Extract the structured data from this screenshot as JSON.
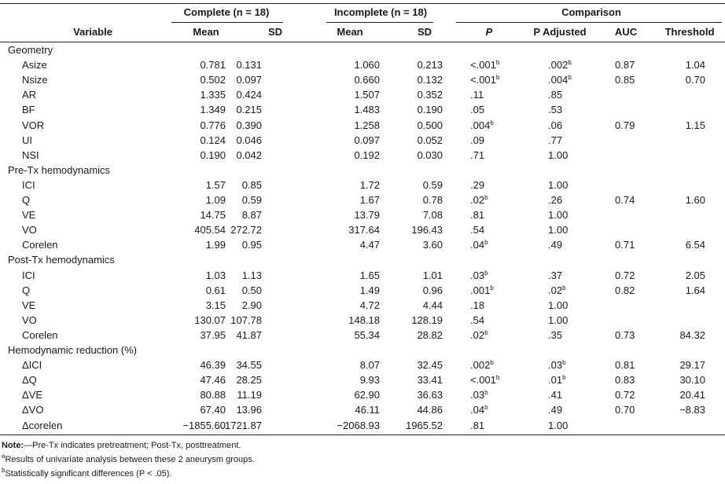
{
  "header": {
    "groups": [
      "Complete (n = 18)",
      "Incomplete (n = 18)",
      "Comparison"
    ],
    "columns": [
      "Variable",
      "Mean",
      "SD",
      "Mean",
      "SD",
      "P",
      "P Adjusted",
      "AUC",
      "Threshold"
    ]
  },
  "sections": [
    {
      "title": "Geometry",
      "rows": [
        {
          "label": "Asize",
          "cells": [
            "0.781",
            "0.131",
            "1.060",
            "0.213",
            {
              "text": "<.001",
              "sup": "b"
            },
            {
              "text": ".002",
              "sup": "b"
            },
            "0.87",
            "1.04"
          ]
        },
        {
          "label": "Nsize",
          "cells": [
            "0.502",
            "0.097",
            "0.660",
            "0.132",
            {
              "text": "<.001",
              "sup": "b"
            },
            {
              "text": ".004",
              "sup": "b"
            },
            "0.85",
            "0.70"
          ]
        },
        {
          "label": "AR",
          "cells": [
            "1.335",
            "0.424",
            "1.507",
            "0.352",
            ".11",
            ".85",
            null,
            null
          ]
        },
        {
          "label": "BF",
          "cells": [
            "1.349",
            "0.215",
            "1.483",
            "0.190",
            ".05",
            ".53",
            null,
            null
          ]
        },
        {
          "label": "VOR",
          "cells": [
            "0.776",
            "0.390",
            "1.258",
            "0.500",
            {
              "text": ".004",
              "sup": "b"
            },
            ".06",
            "0.79",
            "1.15"
          ]
        },
        {
          "label": "UI",
          "cells": [
            "0.124",
            "0.046",
            "0.097",
            "0.052",
            ".09",
            ".77",
            null,
            null
          ]
        },
        {
          "label": "NSI",
          "cells": [
            "0.190",
            "0.042",
            "0.192",
            "0.030",
            ".71",
            "1.00",
            null,
            null
          ]
        }
      ]
    },
    {
      "title": "Pre-Tx hemodynamics",
      "rows": [
        {
          "label": "ICI",
          "cells": [
            "1.57",
            "0.85",
            "1.72",
            "0.59",
            ".29",
            "1.00",
            null,
            null
          ]
        },
        {
          "label": "Q",
          "cells": [
            "1.09",
            "0.59",
            "1.67",
            "0.78",
            {
              "text": ".02",
              "sup": "b"
            },
            ".26",
            "0.74",
            "1.60"
          ]
        },
        {
          "label": "VE",
          "cells": [
            "14.75",
            "8.87",
            "13.79",
            "7.08",
            ".81",
            "1.00",
            null,
            null
          ]
        },
        {
          "label": "VO",
          "cells": [
            "405.54",
            "272.72",
            "317.64",
            "196.43",
            ".54",
            "1.00",
            null,
            null
          ]
        },
        {
          "label": "Corelen",
          "cells": [
            "1.99",
            "0.95",
            "4.47",
            "3.60",
            {
              "text": ".04",
              "sup": "b"
            },
            ".49",
            "0.71",
            "6.54"
          ]
        }
      ]
    },
    {
      "title": "Post-Tx hemodynamics",
      "rows": [
        {
          "label": "ICI",
          "cells": [
            "1.03",
            "1.13",
            "1.65",
            "1.01",
            {
              "text": ".03",
              "sup": "b"
            },
            ".37",
            "0.72",
            "2.05"
          ]
        },
        {
          "label": "Q",
          "cells": [
            "0.61",
            "0.50",
            "1.49",
            "0.96",
            {
              "text": ".001",
              "sup": "b"
            },
            {
              "text": ".02",
              "sup": "b"
            },
            "0.82",
            "1.64"
          ]
        },
        {
          "label": "VE",
          "cells": [
            "3.15",
            "2.90",
            "4.72",
            "4.44",
            ".18",
            "1.00",
            null,
            null
          ]
        },
        {
          "label": "VO",
          "cells": [
            "130.07",
            "107.78",
            "148.18",
            "128.19",
            ".54",
            "1.00",
            null,
            null
          ]
        },
        {
          "label": "Corelen",
          "cells": [
            "37.95",
            "41.87",
            "55.34",
            "28.82",
            {
              "text": ".02",
              "sup": "b"
            },
            ".35",
            "0.73",
            "84.32"
          ]
        }
      ]
    },
    {
      "title": "Hemodynamic reduction (%)",
      "rows": [
        {
          "label": "ΔICI",
          "cells": [
            "46.39",
            "34.55",
            "8.07",
            "32.45",
            {
              "text": ".002",
              "sup": "b"
            },
            {
              "text": ".03",
              "sup": "b"
            },
            "0.81",
            "29.17"
          ]
        },
        {
          "label": "ΔQ",
          "cells": [
            "47.46",
            "28.25",
            "9.93",
            "33.41",
            {
              "text": "<.001",
              "sup": "b"
            },
            {
              "text": ".01",
              "sup": "b"
            },
            "0.83",
            "30.10"
          ]
        },
        {
          "label": "ΔVE",
          "cells": [
            "80.88",
            "11.19",
            "62.90",
            "36.63",
            {
              "text": ".03",
              "sup": "b"
            },
            ".41",
            "0.72",
            "20.41"
          ]
        },
        {
          "label": "ΔVO",
          "cells": [
            "67.40",
            "13.96",
            "46.11",
            "44.86",
            {
              "text": ".04",
              "sup": "b"
            },
            ".49",
            "0.70",
            "−8.83"
          ]
        },
        {
          "label": "Δcorelen",
          "cells": [
            "−1855.60",
            "1721.87",
            "−2068.93",
            "1965.52",
            ".81",
            "1.00",
            null,
            null
          ]
        }
      ]
    }
  ],
  "notes": {
    "label": "Note:",
    "text": "—Pre-Tx indicates pretreatment; Post-Tx, posttreatment.",
    "footnotes": [
      {
        "mark": "a",
        "text": "Results of univariate analysis between these 2 aneurysm groups."
      },
      {
        "mark": "b",
        "text": "Statistically significant differences (P < .05)."
      }
    ]
  }
}
